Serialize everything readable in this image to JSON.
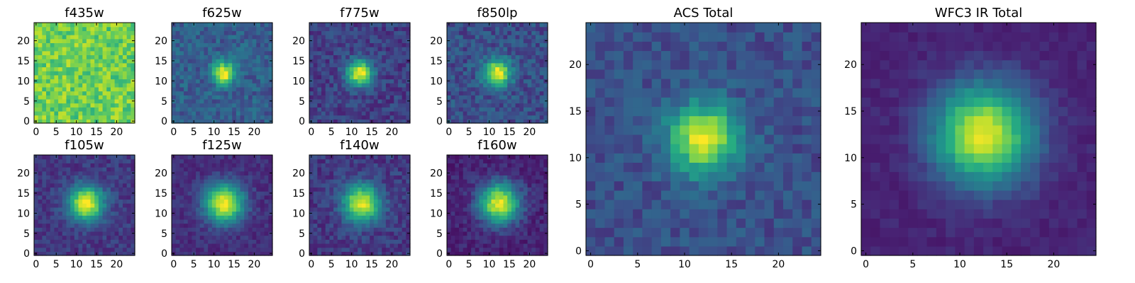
{
  "chart_data": [
    {
      "type": "heatmap",
      "title": "f435w",
      "xticks": [
        0,
        5,
        10,
        15,
        20
      ],
      "yticks": [
        0,
        5,
        10,
        15,
        20
      ],
      "grid_size": 25,
      "xlim": [
        -0.5,
        24.5
      ],
      "ylim": [
        -0.5,
        24.5
      ],
      "colormap": "viridis",
      "content": "noise, no clear source",
      "peak_x": 12,
      "peak_y": 12,
      "peak_amplitude": 0.0,
      "source_width": 3.0,
      "background_level": 0.78,
      "noise_level": 0.14
    },
    {
      "type": "heatmap",
      "title": "f625w",
      "xticks": [
        0,
        5,
        10,
        15,
        20
      ],
      "yticks": [
        0,
        5,
        10,
        15,
        20
      ],
      "grid_size": 25,
      "xlim": [
        -0.5,
        24.5
      ],
      "ylim": [
        -0.5,
        24.5
      ],
      "colormap": "viridis",
      "content": "compact source near center",
      "peak_x": 12.5,
      "peak_y": 12,
      "peak_amplitude": 0.72,
      "source_width": 1.9,
      "background_level": 0.3,
      "noise_level": 0.1
    },
    {
      "type": "heatmap",
      "title": "f775w",
      "xticks": [
        0,
        5,
        10,
        15,
        20
      ],
      "yticks": [
        0,
        5,
        10,
        15,
        20
      ],
      "grid_size": 25,
      "xlim": [
        -0.5,
        24.5
      ],
      "ylim": [
        -0.5,
        24.5
      ],
      "colormap": "viridis",
      "content": "compact source near center",
      "peak_x": 12,
      "peak_y": 12,
      "peak_amplitude": 0.8,
      "source_width": 2.2,
      "background_level": 0.2,
      "noise_level": 0.09
    },
    {
      "type": "heatmap",
      "title": "f850lp",
      "xticks": [
        0,
        5,
        10,
        15,
        20
      ],
      "yticks": [
        0,
        5,
        10,
        15,
        20
      ],
      "grid_size": 25,
      "xlim": [
        -0.5,
        24.5
      ],
      "ylim": [
        -0.5,
        24.5
      ],
      "colormap": "viridis",
      "content": "compact source near center",
      "peak_x": 12,
      "peak_y": 12,
      "peak_amplitude": 0.75,
      "source_width": 2.3,
      "background_level": 0.25,
      "noise_level": 0.1
    },
    {
      "type": "heatmap",
      "title": "f105w",
      "xticks": [
        0,
        5,
        10,
        15,
        20
      ],
      "yticks": [
        0,
        5,
        10,
        15,
        20
      ],
      "grid_size": 25,
      "xlim": [
        -0.5,
        24.5
      ],
      "ylim": [
        -0.5,
        24.5
      ],
      "colormap": "viridis",
      "content": "extended source near center",
      "peak_x": 12.5,
      "peak_y": 12.5,
      "peak_amplitude": 0.82,
      "source_width": 3.0,
      "background_level": 0.18,
      "noise_level": 0.07
    },
    {
      "type": "heatmap",
      "title": "f125w",
      "xticks": [
        0,
        5,
        10,
        15,
        20
      ],
      "yticks": [
        0,
        5,
        10,
        15,
        20
      ],
      "grid_size": 25,
      "xlim": [
        -0.5,
        24.5
      ],
      "ylim": [
        -0.5,
        24.5
      ],
      "colormap": "viridis",
      "content": "extended source near center",
      "peak_x": 12.5,
      "peak_y": 12.5,
      "peak_amplitude": 0.85,
      "source_width": 3.3,
      "background_level": 0.15,
      "noise_level": 0.06
    },
    {
      "type": "heatmap",
      "title": "f140w",
      "xticks": [
        0,
        5,
        10,
        15,
        20
      ],
      "yticks": [
        0,
        5,
        10,
        15,
        20
      ],
      "grid_size": 25,
      "xlim": [
        -0.5,
        24.5
      ],
      "ylim": [
        -0.5,
        24.5
      ],
      "colormap": "viridis",
      "content": "extended source near center",
      "peak_x": 12.5,
      "peak_y": 12.5,
      "peak_amplitude": 0.8,
      "source_width": 3.2,
      "background_level": 0.18,
      "noise_level": 0.08
    },
    {
      "type": "heatmap",
      "title": "f160w",
      "xticks": [
        0,
        5,
        10,
        15,
        20
      ],
      "yticks": [
        0,
        5,
        10,
        15,
        20
      ],
      "grid_size": 25,
      "xlim": [
        -0.5,
        24.5
      ],
      "ylim": [
        -0.5,
        24.5
      ],
      "colormap": "viridis",
      "content": "extended source near center",
      "peak_x": 12.5,
      "peak_y": 12.5,
      "peak_amplitude": 0.85,
      "source_width": 3.4,
      "background_level": 0.12,
      "noise_level": 0.07
    },
    {
      "type": "heatmap",
      "title": "ACS Total",
      "xticks": [
        0,
        5,
        10,
        15,
        20
      ],
      "yticks": [
        0,
        5,
        10,
        15,
        20
      ],
      "grid_size": 25,
      "xlim": [
        -0.5,
        24.5
      ],
      "ylim": [
        -0.5,
        24.5
      ],
      "colormap": "viridis",
      "content": "source near center, sum of ACS bands",
      "peak_x": 12,
      "peak_y": 12,
      "peak_amplitude": 0.72,
      "source_width": 2.6,
      "background_level": 0.25,
      "noise_level": 0.08
    },
    {
      "type": "heatmap",
      "title": "WFC3 IR Total",
      "xticks": [
        0,
        5,
        10,
        15,
        20
      ],
      "yticks": [
        0,
        5,
        10,
        15,
        20
      ],
      "grid_size": 25,
      "xlim": [
        -0.5,
        24.5
      ],
      "ylim": [
        -0.5,
        24.5
      ],
      "colormap": "viridis",
      "content": "extended source near center, sum of IR bands",
      "peak_x": 12.5,
      "peak_y": 12.5,
      "peak_amplitude": 0.85,
      "source_width": 3.6,
      "background_level": 0.12,
      "noise_level": 0.04
    }
  ]
}
